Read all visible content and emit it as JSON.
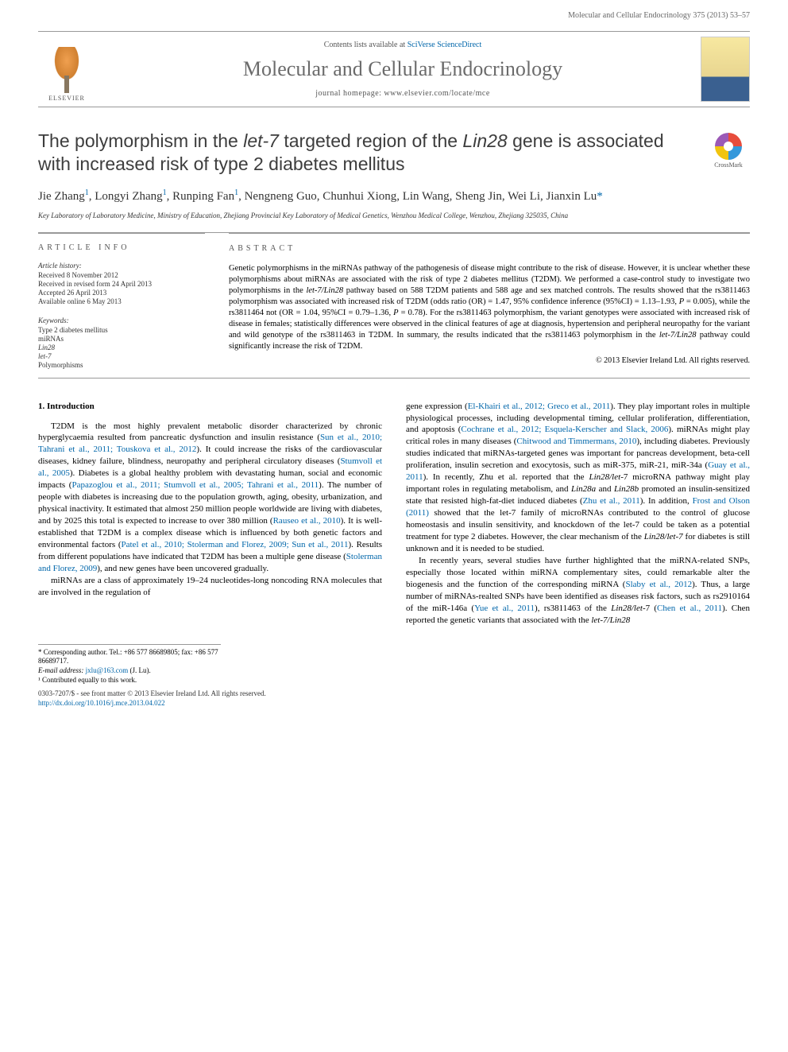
{
  "header": {
    "running": "Molecular and Cellular Endocrinology 375 (2013) 53–57"
  },
  "banner": {
    "elsevier": "ELSEVIER",
    "contents_prefix": "Contents lists available at ",
    "contents_link": "SciVerse ScienceDirect",
    "journal": "Molecular and Cellular Endocrinology",
    "homepage_prefix": "journal homepage: ",
    "homepage": "www.elsevier.com/locate/mce"
  },
  "article": {
    "title_1": "The polymorphism in the ",
    "title_i1": "let-7",
    "title_2": " targeted region of the ",
    "title_i2": "Lin28",
    "title_3": " gene is associated with increased risk of type 2 diabetes mellitus",
    "crossmark": "CrossMark",
    "authors_raw": "Jie Zhang",
    "a_sup1": "1",
    "a2": ", Longyi Zhang",
    "a_sup2": "1",
    "a3": ", Runping Fan",
    "a_sup3": "1",
    "a4": ", Nengneng Guo, Chunhui Xiong, Lin Wang, Sheng Jin, Wei Li, Jianxin Lu",
    "a_corr": "*",
    "affiliation": "Key Laboratory of Laboratory Medicine, Ministry of Education, Zhejiang Provincial Key Laboratory of Medical Genetics, Wenzhou Medical College, Wenzhou, Zhejiang 325035, China"
  },
  "info": {
    "heading": "article info",
    "history_label": "Article history:",
    "h1": "Received 8 November 2012",
    "h2": "Received in revised form 24 April 2013",
    "h3": "Accepted 26 April 2013",
    "h4": "Available online 6 May 2013",
    "kw_label": "Keywords:",
    "k1": "Type 2 diabetes mellitus",
    "k2": "miRNAs",
    "k3": "Lin28",
    "k4": "let-7",
    "k5": "Polymorphisms"
  },
  "abstract": {
    "heading": "abstract",
    "text_1": "Genetic polymorphisms in the miRNAs pathway of the pathogenesis of disease might contribute to the risk of disease. However, it is unclear whether these polymorphisms about miRNAs are associated with the risk of type 2 diabetes mellitus (T2DM). We performed a case-control study to investigate two polymorphisms in the ",
    "text_i1": "let-7/Lin28",
    "text_2": " pathway based on 588 T2DM patients and 588 age and sex matched controls. The results showed that the rs3811463 polymorphism was associated with increased risk of T2DM (odds ratio (OR) = 1.47, 95% confidence inference (95%CI) = 1.13–1.93, ",
    "text_i2": "P",
    "text_3": " = 0.005), while the rs3811464 not (OR = 1.04, 95%CI = 0.79–1.36, ",
    "text_i3": "P",
    "text_4": " = 0.78). For the rs3811463 polymorphism, the variant genotypes were associated with increased risk of disease in females; statistically differences were observed in the clinical features of age at diagnosis, hypertension and peripheral neuropathy for the variant and wild genotype of the rs3811463 in T2DM. In summary, the results indicated that the rs3811463 polymorphism in the ",
    "text_i4": "let-7/Lin28",
    "text_5": " pathway could significantly increase the risk of T2DM.",
    "copyright": "© 2013 Elsevier Ireland Ltd. All rights reserved."
  },
  "body": {
    "sec1_title": "1. Introduction",
    "col1_p1a": "T2DM is the most highly prevalent metabolic disorder characterized by chronic hyperglycaemia resulted from pancreatic dysfunction and insulin resistance (",
    "col1_c1": "Sun et al., 2010; Tahrani et al., 2011; Touskova et al., 2012",
    "col1_p1b": "). It could increase the risks of the cardiovascular diseases, kidney failure, blindness, neuropathy and peripheral circulatory diseases (",
    "col1_c2": "Stumvoll et al., 2005",
    "col1_p1c": "). Diabetes is a global healthy problem with devastating human, social and economic impacts (",
    "col1_c3": "Papazoglou et al., 2011; Stumvoll et al., 2005; Tahrani et al., 2011",
    "col1_p1d": "). The number of people with diabetes is increasing due to the population growth, aging, obesity, urbanization, and physical inactivity. It estimated that almost 250 million people worldwide are living with diabetes, and by 2025 this total is expected to increase to over 380 million (",
    "col1_c4": "Rauseo et al., 2010",
    "col1_p1e": "). It is well-established that T2DM is a complex disease which is influenced by both genetic factors and environmental factors (",
    "col1_c5": "Patel et al., 2010; Stolerman and Florez, 2009; Sun et al., 2011",
    "col1_p1f": "). Results from different populations have indicated that T2DM has been a multiple gene disease (",
    "col1_c6": "Stolerman and Florez, 2009",
    "col1_p1g": "), and new genes have been uncovered gradually.",
    "col1_p2": "miRNAs are a class of approximately 19–24 nucleotides-long noncoding RNA molecules that are involved in the regulation of",
    "col2_p1a": "gene expression (",
    "col2_c1": "El-Khairi et al., 2012; Greco et al., 2011",
    "col2_p1b": "). They play important roles in multiple physiological processes, including developmental timing, cellular proliferation, differentiation, and apoptosis (",
    "col2_c2": "Cochrane et al., 2012; Esquela-Kerscher and Slack, 2006",
    "col2_p1c": "). miRNAs might play critical roles in many diseases (",
    "col2_c3": "Chitwood and Timmermans, 2010",
    "col2_p1d": "), including diabetes. Previously studies indicated that miRNAs-targeted genes was important for pancreas development, beta-cell proliferation, insulin secretion and exocytosis, such as miR-375, miR-21, miR-34a (",
    "col2_c4": "Guay et al., 2011",
    "col2_p1e": "). In recently, Zhu et al. reported that the ",
    "col2_i1": "Lin28/let",
    "col2_p1f": "-7 microRNA pathway might play important roles in regulating metabolism, and ",
    "col2_i2": "Lin28a",
    "col2_p1g": " and ",
    "col2_i3": "Lin28b",
    "col2_p1h": " promoted an insulin-sensitized state that resisted high-fat-diet induced diabetes (",
    "col2_c5": "Zhu et al., 2011",
    "col2_p1i": "). In addition, ",
    "col2_c6": "Frost and Olson (2011)",
    "col2_p1j": " showed that the let-7 family of microRNAs contributed to the control of glucose homeostasis and insulin sensitivity, and knockdown of the let-7 could be taken as a potential treatment for type 2 diabetes. However, the clear mechanism of the ",
    "col2_i4": "Lin28/let-7",
    "col2_p1k": " for diabetes is still unknown and it is needed to be studied.",
    "col2_p2a": "In recently years, several studies have further highlighted that the miRNA-related SNPs, especially those located within miRNA complementary sites, could remarkable alter the biogenesis and the function of the corresponding miRNA (",
    "col2_c7": "Slaby et al., 2012",
    "col2_p2b": "). Thus, a large number of miRNAs-realted SNPs have been identified as diseases risk factors, such as rs2910164 of the miR-146a (",
    "col2_c8": "Yue et al., 2011",
    "col2_p2c": "), rs3811463 of the ",
    "col2_i5": "Lin28/let",
    "col2_p2d": "-7 (",
    "col2_c9": "Chen et al., 2011",
    "col2_p2e": "). Chen reported the genetic variants that associated with the ",
    "col2_i6": "let-7/Lin28"
  },
  "footer": {
    "corr_label": "* Corresponding author. Tel.: +86 577 86689805; fax: +86 577 86689717.",
    "email_label": "E-mail address:",
    "email": "jxlu@163.com",
    "email_suffix": " (J. Lu).",
    "note1": "¹ Contributed equally to this work.",
    "issn": "0303-7207/$ - see front matter © 2013 Elsevier Ireland Ltd. All rights reserved.",
    "doi": "http://dx.doi.org/10.1016/j.mce.2013.04.022"
  }
}
